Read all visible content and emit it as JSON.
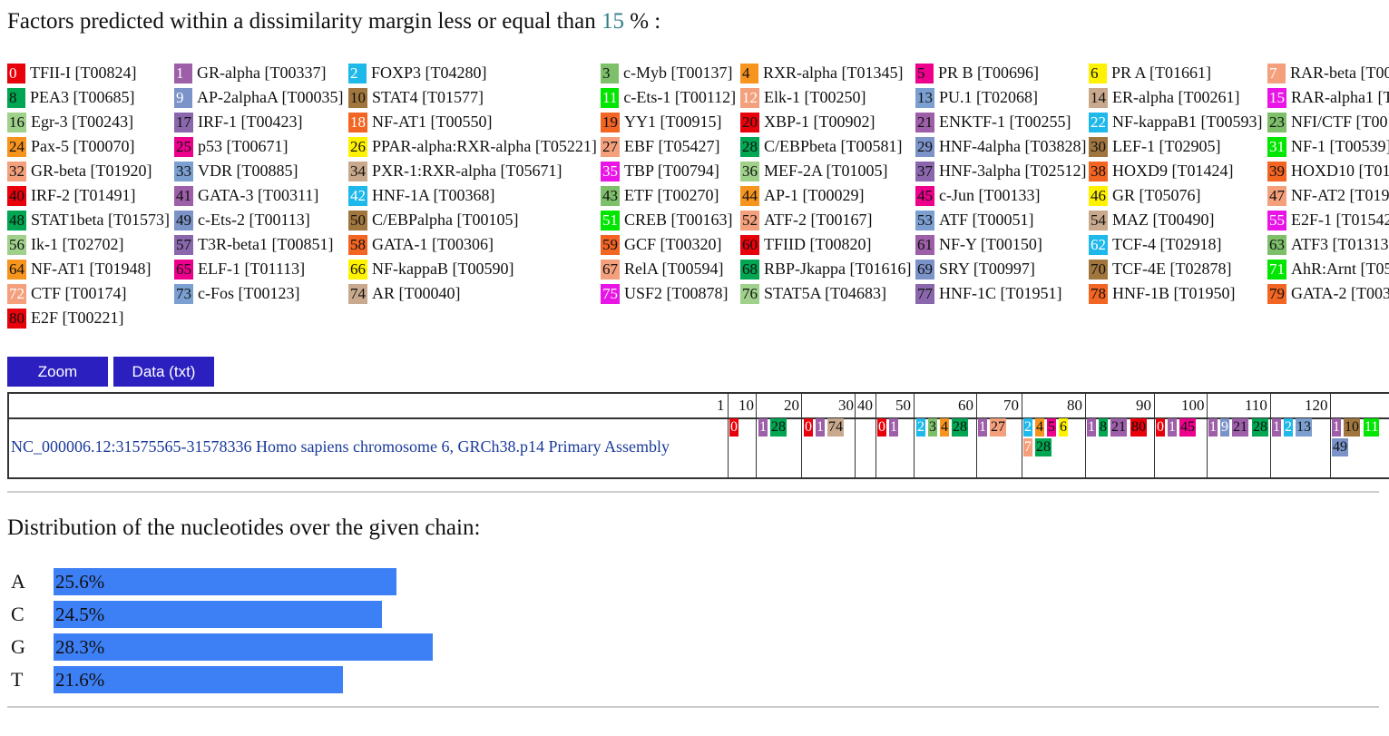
{
  "header": {
    "title_prefix": "Factors predicted within a dissimilarity margin less or equal than ",
    "margin": "15",
    "title_suffix": " % :"
  },
  "legend": [
    {
      "n": "0",
      "label": "TFII-I [T00824]",
      "color": "#e8000b",
      "text": "#fff"
    },
    {
      "n": "1",
      "label": "GR-alpha [T00337]",
      "color": "#9c5fa8",
      "text": "#fff"
    },
    {
      "n": "2",
      "label": "FOXP3 [T04280]",
      "color": "#1eb8ea",
      "text": "#fff"
    },
    {
      "n": "3",
      "label": "c-Myb [T00137]",
      "color": "#7ebf6a",
      "text": "#111"
    },
    {
      "n": "4",
      "label": "RXR-alpha [T01345]",
      "color": "#f7941d",
      "text": "#111"
    },
    {
      "n": "5",
      "label": "PR B [T00696]",
      "color": "#ec008c",
      "text": "#111"
    },
    {
      "n": "6",
      "label": "PR A [T01661]",
      "color": "#fff200",
      "text": "#111"
    },
    {
      "n": "7",
      "label": "RAR-beta [T00",
      "color": "#f4a07c",
      "text": "#fff"
    },
    {
      "n": "8",
      "label": "PEA3 [T00685]",
      "color": "#00a651",
      "text": "#111"
    },
    {
      "n": "9",
      "label": "AP-2alphaA [T00035]",
      "color": "#7b93c9",
      "text": "#fff"
    },
    {
      "n": "10",
      "label": "STAT4 [T01577]",
      "color": "#a0763e",
      "text": "#111"
    },
    {
      "n": "11",
      "label": "c-Ets-1 [T00112]",
      "color": "#00e600",
      "text": "#fff"
    },
    {
      "n": "12",
      "label": "Elk-1 [T00250]",
      "color": "#f4a07c",
      "text": "#fff"
    },
    {
      "n": "13",
      "label": "PU.1 [T02068]",
      "color": "#7b9fd1",
      "text": "#111"
    },
    {
      "n": "14",
      "label": "ER-alpha [T00261]",
      "color": "#c9a98d",
      "text": "#111"
    },
    {
      "n": "15",
      "label": "RAR-alpha1 [T",
      "color": "#e815e6",
      "text": "#fff"
    },
    {
      "n": "16",
      "label": "Egr-3 [T00243]",
      "color": "#9fd18b",
      "text": "#111"
    },
    {
      "n": "17",
      "label": "IRF-1 [T00423]",
      "color": "#8a67ad",
      "text": "#111"
    },
    {
      "n": "18",
      "label": "NF-AT1 [T00550]",
      "color": "#f26522",
      "text": "#fff"
    },
    {
      "n": "19",
      "label": "YY1 [T00915]",
      "color": "#f26522",
      "text": "#111"
    },
    {
      "n": "20",
      "label": "XBP-1 [T00902]",
      "color": "#e8000b",
      "text": "#111"
    },
    {
      "n": "21",
      "label": "ENKTF-1 [T00255]",
      "color": "#9c5fa8",
      "text": "#111"
    },
    {
      "n": "22",
      "label": "NF-kappaB1 [T00593]",
      "color": "#1eb8ea",
      "text": "#fff"
    },
    {
      "n": "23",
      "label": "NFI/CTF [T00",
      "color": "#7ebf6a",
      "text": "#111"
    },
    {
      "n": "24",
      "label": "Pax-5 [T00070]",
      "color": "#f7941d",
      "text": "#111"
    },
    {
      "n": "25",
      "label": "p53 [T00671]",
      "color": "#ec008c",
      "text": "#111"
    },
    {
      "n": "26",
      "label": "PPAR-alpha:RXR-alpha [T05221]",
      "color": "#fff200",
      "text": "#111"
    },
    {
      "n": "27",
      "label": "EBF [T05427]",
      "color": "#f4a07c",
      "text": "#111"
    },
    {
      "n": "28",
      "label": "C/EBPbeta [T00581]",
      "color": "#00a651",
      "text": "#111"
    },
    {
      "n": "29",
      "label": "HNF-4alpha [T03828]",
      "color": "#7b93c9",
      "text": "#111"
    },
    {
      "n": "30",
      "label": "LEF-1 [T02905]",
      "color": "#a0763e",
      "text": "#111"
    },
    {
      "n": "31",
      "label": "NF-1 [T00539]",
      "color": "#00e600",
      "text": "#fff"
    },
    {
      "n": "32",
      "label": "GR-beta [T01920]",
      "color": "#f4a07c",
      "text": "#111"
    },
    {
      "n": "33",
      "label": "VDR [T00885]",
      "color": "#7b9fd1",
      "text": "#111"
    },
    {
      "n": "34",
      "label": "PXR-1:RXR-alpha [T05671]",
      "color": "#c9a98d",
      "text": "#111"
    },
    {
      "n": "35",
      "label": "TBP [T00794]",
      "color": "#e815e6",
      "text": "#fff"
    },
    {
      "n": "36",
      "label": "MEF-2A [T01005]",
      "color": "#9fd18b",
      "text": "#111"
    },
    {
      "n": "37",
      "label": "HNF-3alpha [T02512]",
      "color": "#8a67ad",
      "text": "#111"
    },
    {
      "n": "38",
      "label": "HOXD9 [T01424]",
      "color": "#f26522",
      "text": "#111"
    },
    {
      "n": "39",
      "label": "HOXD10 [T01",
      "color": "#f26522",
      "text": "#111"
    },
    {
      "n": "40",
      "label": "IRF-2 [T01491]",
      "color": "#e8000b",
      "text": "#111"
    },
    {
      "n": "41",
      "label": "GATA-3 [T00311]",
      "color": "#9c5fa8",
      "text": "#111"
    },
    {
      "n": "42",
      "label": "HNF-1A [T00368]",
      "color": "#1eb8ea",
      "text": "#fff"
    },
    {
      "n": "43",
      "label": "ETF [T00270]",
      "color": "#7ebf6a",
      "text": "#111"
    },
    {
      "n": "44",
      "label": "AP-1 [T00029]",
      "color": "#f7941d",
      "text": "#111"
    },
    {
      "n": "45",
      "label": "c-Jun [T00133]",
      "color": "#ec008c",
      "text": "#111"
    },
    {
      "n": "46",
      "label": "GR [T05076]",
      "color": "#fff200",
      "text": "#111"
    },
    {
      "n": "47",
      "label": "NF-AT2 [T019",
      "color": "#f4a07c",
      "text": "#111"
    },
    {
      "n": "48",
      "label": "STAT1beta [T01573]",
      "color": "#00a651",
      "text": "#111"
    },
    {
      "n": "49",
      "label": "c-Ets-2 [T00113]",
      "color": "#7b93c9",
      "text": "#111"
    },
    {
      "n": "50",
      "label": "C/EBPalpha [T00105]",
      "color": "#a0763e",
      "text": "#111"
    },
    {
      "n": "51",
      "label": "CREB [T00163]",
      "color": "#00e600",
      "text": "#fff"
    },
    {
      "n": "52",
      "label": "ATF-2 [T00167]",
      "color": "#f4a07c",
      "text": "#111"
    },
    {
      "n": "53",
      "label": "ATF [T00051]",
      "color": "#7b9fd1",
      "text": "#111"
    },
    {
      "n": "54",
      "label": "MAZ [T00490]",
      "color": "#c9a98d",
      "text": "#111"
    },
    {
      "n": "55",
      "label": "E2F-1 [T01542",
      "color": "#e815e6",
      "text": "#fff"
    },
    {
      "n": "56",
      "label": "Ik-1 [T02702]",
      "color": "#9fd18b",
      "text": "#111"
    },
    {
      "n": "57",
      "label": "T3R-beta1 [T00851]",
      "color": "#8a67ad",
      "text": "#111"
    },
    {
      "n": "58",
      "label": "GATA-1 [T00306]",
      "color": "#f26522",
      "text": "#111"
    },
    {
      "n": "59",
      "label": "GCF [T00320]",
      "color": "#f26522",
      "text": "#111"
    },
    {
      "n": "60",
      "label": "TFIID [T00820]",
      "color": "#e8000b",
      "text": "#111"
    },
    {
      "n": "61",
      "label": "NF-Y [T00150]",
      "color": "#9c5fa8",
      "text": "#111"
    },
    {
      "n": "62",
      "label": "TCF-4 [T02918]",
      "color": "#1eb8ea",
      "text": "#fff"
    },
    {
      "n": "63",
      "label": "ATF3 [T01313",
      "color": "#7ebf6a",
      "text": "#111"
    },
    {
      "n": "64",
      "label": "NF-AT1 [T01948]",
      "color": "#f7941d",
      "text": "#111"
    },
    {
      "n": "65",
      "label": "ELF-1 [T01113]",
      "color": "#ec008c",
      "text": "#111"
    },
    {
      "n": "66",
      "label": "NF-kappaB [T00590]",
      "color": "#fff200",
      "text": "#111"
    },
    {
      "n": "67",
      "label": "RelA [T00594]",
      "color": "#f4a07c",
      "text": "#111"
    },
    {
      "n": "68",
      "label": "RBP-Jkappa [T01616]",
      "color": "#00a651",
      "text": "#111"
    },
    {
      "n": "69",
      "label": "SRY [T00997]",
      "color": "#7b93c9",
      "text": "#111"
    },
    {
      "n": "70",
      "label": "TCF-4E [T02878]",
      "color": "#a0763e",
      "text": "#111"
    },
    {
      "n": "71",
      "label": "AhR:Arnt [T05",
      "color": "#00e600",
      "text": "#fff"
    },
    {
      "n": "72",
      "label": "CTF [T00174]",
      "color": "#f4a07c",
      "text": "#fff"
    },
    {
      "n": "73",
      "label": "c-Fos [T00123]",
      "color": "#7b9fd1",
      "text": "#111"
    },
    {
      "n": "74",
      "label": "AR [T00040]",
      "color": "#c9a98d",
      "text": "#111"
    },
    {
      "n": "75",
      "label": "USF2 [T00878]",
      "color": "#e815e6",
      "text": "#fff"
    },
    {
      "n": "76",
      "label": "STAT5A [T04683]",
      "color": "#9fd18b",
      "text": "#111"
    },
    {
      "n": "77",
      "label": "HNF-1C [T01951]",
      "color": "#8a67ad",
      "text": "#111"
    },
    {
      "n": "78",
      "label": "HNF-1B [T01950]",
      "color": "#f26522",
      "text": "#111"
    },
    {
      "n": "79",
      "label": "GATA-2 [T003",
      "color": "#f26522",
      "text": "#111"
    },
    {
      "n": "80",
      "label": "E2F [T00221]",
      "color": "#e8000b",
      "text": "#111"
    }
  ],
  "buttons": {
    "zoom": "Zoom",
    "data": "Data (txt)"
  },
  "track": {
    "ticks": [
      "1",
      "10",
      "20",
      "30",
      "40",
      "50",
      "60",
      "70",
      "80",
      "90",
      "100",
      "110",
      "120",
      "1"
    ],
    "sequence_name": "NC_000006.12:31575565-31578336 Homo sapiens chromosome 6, GRCh38.p14 Primary Assembly",
    "sites": [
      [
        "0"
      ],
      [
        "1",
        "28"
      ],
      [
        "0",
        "1",
        "74"
      ],
      [
        "0",
        "1"
      ],
      [
        "2",
        "3",
        "4",
        "28"
      ],
      [
        "1",
        "27"
      ],
      [
        "2",
        "4",
        "5",
        "6"
      ],
      [
        "7",
        "28"
      ],
      [
        "1",
        "8",
        "21",
        "80"
      ],
      [
        "0",
        "1",
        "45"
      ],
      [
        "1",
        "9",
        "21",
        "28"
      ],
      [
        "1",
        "2",
        "13"
      ],
      [
        "1",
        "10",
        "11"
      ],
      [
        "49"
      ]
    ]
  },
  "distribution": {
    "title": "Distribution of the nucleotides over the given chain:",
    "rows": [
      {
        "base": "A",
        "percent": "25.6%",
        "value": 25.6
      },
      {
        "base": "C",
        "percent": "24.5%",
        "value": 24.5
      },
      {
        "base": "G",
        "percent": "28.3%",
        "value": 28.3
      },
      {
        "base": "T",
        "percent": "21.6%",
        "value": 21.6
      }
    ]
  }
}
